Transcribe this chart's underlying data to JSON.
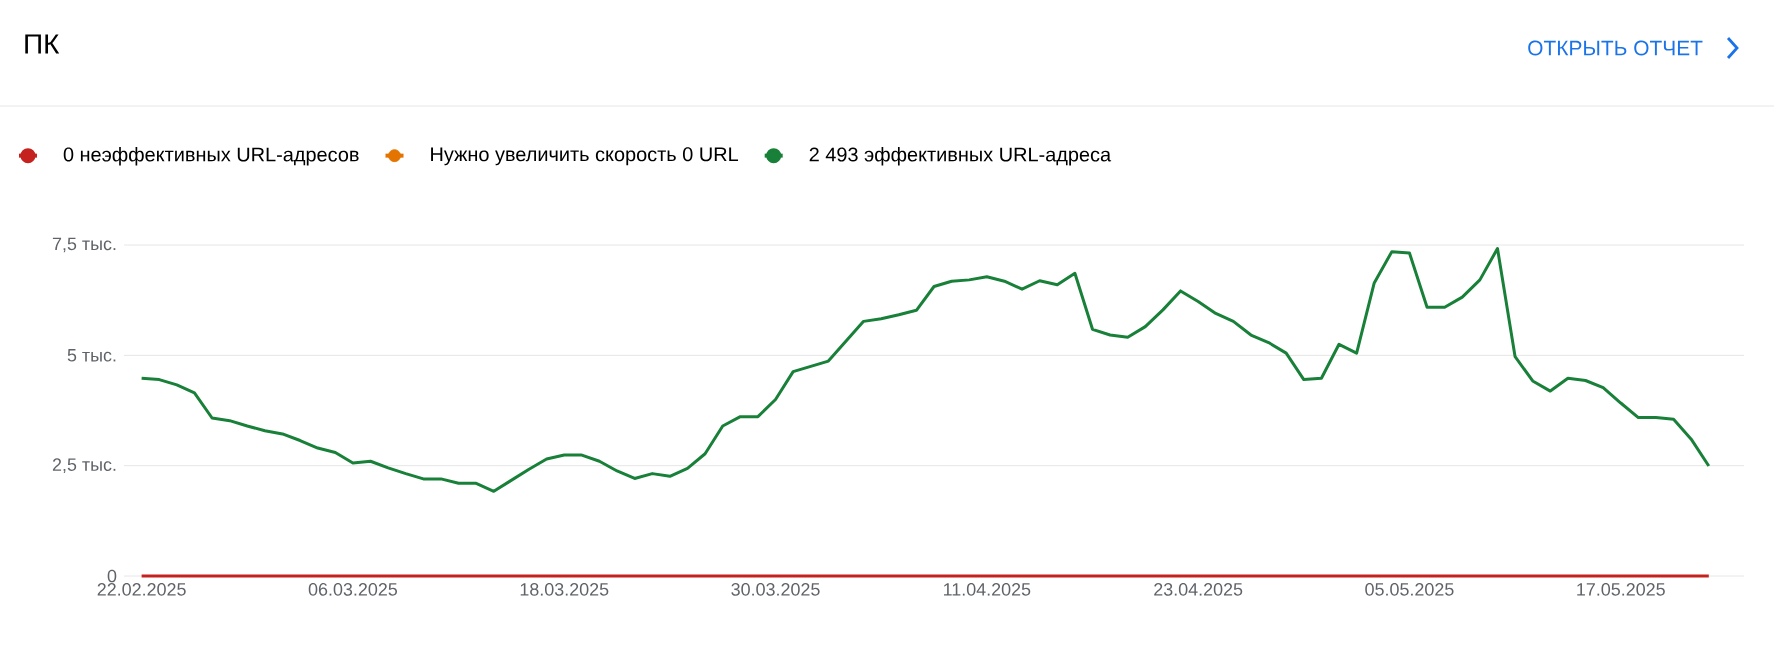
{
  "chart_data": {
    "type": "line",
    "title": "ПК",
    "annotations": [
      "ОТКРЫТЬ ОТЧЕТ"
    ],
    "x": [
      "2025-02-22",
      "2025-02-23",
      "2025-02-24",
      "2025-02-25",
      "2025-02-26",
      "2025-02-27",
      "2025-02-28",
      "2025-03-01",
      "2025-03-02",
      "2025-03-03",
      "2025-03-04",
      "2025-03-05",
      "2025-03-06",
      "2025-03-07",
      "2025-03-08",
      "2025-03-09",
      "2025-03-10",
      "2025-03-11",
      "2025-03-12",
      "2025-03-13",
      "2025-03-14",
      "2025-03-15",
      "2025-03-16",
      "2025-03-17",
      "2025-03-18",
      "2025-03-19",
      "2025-03-20",
      "2025-03-21",
      "2025-03-22",
      "2025-03-23",
      "2025-03-24",
      "2025-03-25",
      "2025-03-26",
      "2025-03-27",
      "2025-03-28",
      "2025-03-29",
      "2025-03-30",
      "2025-03-31",
      "2025-04-01",
      "2025-04-02",
      "2025-04-03",
      "2025-04-04",
      "2025-04-05",
      "2025-04-06",
      "2025-04-07",
      "2025-04-08",
      "2025-04-09",
      "2025-04-10",
      "2025-04-11",
      "2025-04-12",
      "2025-04-13",
      "2025-04-14",
      "2025-04-15",
      "2025-04-16",
      "2025-04-17",
      "2025-04-18",
      "2025-04-19",
      "2025-04-20",
      "2025-04-21",
      "2025-04-22",
      "2025-04-23",
      "2025-04-24",
      "2025-04-25",
      "2025-04-26",
      "2025-04-27",
      "2025-04-28",
      "2025-04-29",
      "2025-04-30",
      "2025-05-01",
      "2025-05-02",
      "2025-05-03",
      "2025-05-04",
      "2025-05-05",
      "2025-05-06",
      "2025-05-07",
      "2025-05-08",
      "2025-05-09",
      "2025-05-10",
      "2025-05-11",
      "2025-05-12",
      "2025-05-13",
      "2025-05-14",
      "2025-05-15",
      "2025-05-16",
      "2025-05-17",
      "2025-05-18",
      "2025-05-19",
      "2025-05-20",
      "2025-05-21",
      "2025-05-22"
    ],
    "series": [
      {
        "name": "0 неэффективных URL-адресов",
        "color": "#c5221f",
        "values": [
          0,
          0,
          0,
          0,
          0,
          0,
          0,
          0,
          0,
          0,
          0,
          0,
          0,
          0,
          0,
          0,
          0,
          0,
          0,
          0,
          0,
          0,
          0,
          0,
          0,
          0,
          0,
          0,
          0,
          0,
          0,
          0,
          0,
          0,
          0,
          0,
          0,
          0,
          0,
          0,
          0,
          0,
          0,
          0,
          0,
          0,
          0,
          0,
          0,
          0,
          0,
          0,
          0,
          0,
          0,
          0,
          0,
          0,
          0,
          0,
          0,
          0,
          0,
          0,
          0,
          0,
          0,
          0,
          0,
          0,
          0,
          0,
          0,
          0,
          0,
          0,
          0,
          0,
          0,
          0,
          0,
          0,
          0,
          0,
          0,
          0,
          0,
          0,
          0,
          0
        ]
      },
      {
        "name": "Нужно увеличить скорость 0 URL",
        "color": "#e37400",
        "values": [
          null,
          null,
          null,
          null,
          null,
          null,
          null,
          null,
          null,
          null,
          null,
          null,
          null,
          null,
          null,
          null,
          null,
          null,
          null,
          null,
          null,
          null,
          null,
          null,
          null,
          null,
          null,
          null,
          null,
          null,
          null,
          null,
          null,
          null,
          null,
          null,
          null,
          null,
          null,
          null,
          null,
          null,
          null,
          null,
          null,
          null,
          null,
          null,
          null,
          null,
          null,
          null,
          null,
          null,
          null,
          null,
          null,
          null,
          null,
          null,
          null,
          null,
          null,
          null,
          null,
          null,
          null,
          null,
          null,
          null,
          null,
          null,
          null,
          null,
          null,
          null,
          null,
          null,
          null,
          null,
          null,
          null,
          null,
          null,
          null,
          null,
          null,
          null,
          null,
          null
        ]
      },
      {
        "name": "2 493 эффективных URL-адреса",
        "color": "#188038",
        "values": [
          4.48,
          4.45,
          4.33,
          4.15,
          3.58,
          3.52,
          3.4,
          3.29,
          3.22,
          3.07,
          2.9,
          2.8,
          2.56,
          2.6,
          2.45,
          2.32,
          2.2,
          2.2,
          2.1,
          2.1,
          1.92,
          2.17,
          2.42,
          2.65,
          2.74,
          2.74,
          2.6,
          2.38,
          2.21,
          2.32,
          2.26,
          2.44,
          2.77,
          3.4,
          3.61,
          3.61,
          4.0,
          4.63,
          4.75,
          4.87,
          5.32,
          5.77,
          5.83,
          5.92,
          6.02,
          6.56,
          6.68,
          6.71,
          6.78,
          6.68,
          6.5,
          6.69,
          6.6,
          6.86,
          5.59,
          5.46,
          5.41,
          5.65,
          6.03,
          6.46,
          6.22,
          5.95,
          5.77,
          5.46,
          5.29,
          5.05,
          4.45,
          4.48,
          5.25,
          5.05,
          6.64,
          7.35,
          7.32,
          6.09,
          6.09,
          6.32,
          6.71,
          7.42,
          4.97,
          4.42,
          4.19,
          4.48,
          4.43,
          4.27,
          3.92,
          3.59,
          3.59,
          3.55,
          3.1,
          2.493
        ]
      }
    ],
    "xlim": [
      "2025-02-21",
      "2025-05-24"
    ],
    "xticks": [
      {
        "value": "2025-02-22",
        "label": "22.02.2025"
      },
      {
        "value": "2025-03-06",
        "label": "06.03.2025"
      },
      {
        "value": "2025-03-18",
        "label": "18.03.2025"
      },
      {
        "value": "2025-03-30",
        "label": "30.03.2025"
      },
      {
        "value": "2025-04-11",
        "label": "11.04.2025"
      },
      {
        "value": "2025-04-23",
        "label": "23.04.2025"
      },
      {
        "value": "2025-05-05",
        "label": "05.05.2025"
      },
      {
        "value": "2025-05-17",
        "label": "17.05.2025"
      }
    ],
    "ylim": [
      0,
      7.5
    ],
    "yticks": [
      0,
      {
        "value": 2.5,
        "label": "2,5 тыс."
      },
      {
        "value": 5,
        "label": "5 тыс."
      },
      {
        "value": 7.5,
        "label": "7,5 тыс."
      }
    ],
    "grid": "y",
    "legend": "top left",
    "line_style": "solid"
  }
}
